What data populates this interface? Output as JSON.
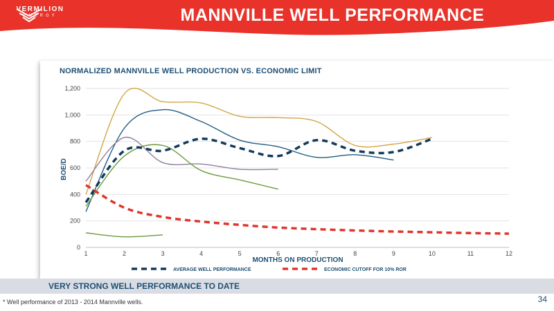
{
  "header": {
    "title": "MANNVILLE WELL PERFORMANCE",
    "logo_name": "VERMILION",
    "logo_sub": "ENERGY"
  },
  "colors": {
    "brand_red": "#e8322a",
    "navy": "#1e4f73",
    "gold": "#d4a442",
    "green": "#6b9a3b",
    "purple": "#8e7d9e"
  },
  "chart_data": {
    "type": "line",
    "title": "NORMALIZED MANNVILLE WELL PRODUCTION VS. ECONOMIC LIMIT",
    "xlabel": "MONTHS ON PRODUCTION",
    "ylabel": "BOE/D",
    "xlim": [
      1,
      12
    ],
    "ylim": [
      0,
      1200
    ],
    "x_ticks": [
      "1",
      "2",
      "3",
      "4",
      "5",
      "6",
      "7",
      "8",
      "9",
      "10",
      "11",
      "12"
    ],
    "y_ticks": [
      "0",
      "200",
      "400",
      "600",
      "800",
      "1,000",
      "1,200"
    ],
    "grid": true,
    "legend_position": "bottom",
    "series": [
      {
        "name": "",
        "color": "#d4a442",
        "style": "solid",
        "x": [
          1,
          2,
          3,
          4,
          5,
          6,
          7,
          8,
          9,
          10
        ],
        "y": [
          400,
          1160,
          1100,
          1090,
          990,
          980,
          950,
          770,
          780,
          830
        ]
      },
      {
        "name": "",
        "color": "#1e5a82",
        "style": "solid",
        "x": [
          1,
          2,
          3,
          4,
          5,
          6,
          7,
          8,
          9
        ],
        "y": [
          270,
          900,
          1040,
          950,
          810,
          760,
          680,
          700,
          660
        ]
      },
      {
        "name": "",
        "color": "#8e7d9e",
        "style": "solid",
        "x": [
          1,
          2,
          3,
          4,
          5,
          6
        ],
        "y": [
          500,
          830,
          640,
          630,
          590,
          590
        ]
      },
      {
        "name": "",
        "color": "#6b9a3b",
        "style": "solid",
        "x": [
          1,
          2,
          3,
          4,
          5,
          6
        ],
        "y": [
          310,
          690,
          770,
          580,
          510,
          440
        ]
      },
      {
        "name": "",
        "color": "#6b9a3b",
        "style": "solid",
        "x": [
          1,
          2,
          3
        ],
        "y": [
          110,
          80,
          95
        ]
      },
      {
        "name": "AVERAGE WELL PERFORMANCE",
        "color": "#123a5a",
        "style": "dashed",
        "x": [
          1,
          2,
          3,
          4,
          5,
          6,
          7,
          8,
          9,
          10
        ],
        "y": [
          340,
          730,
          730,
          820,
          750,
          690,
          810,
          730,
          720,
          820
        ]
      },
      {
        "name": "ECONOMIC CUTOFF FOR 10% ROR",
        "color": "#e0352b",
        "style": "dashed",
        "x": [
          1,
          2,
          3,
          4,
          5,
          6,
          7,
          8,
          9,
          10,
          11,
          12
        ],
        "y": [
          470,
          300,
          230,
          195,
          170,
          150,
          138,
          128,
          120,
          114,
          108,
          104
        ]
      }
    ]
  },
  "footer": {
    "takeaway": "VERY STRONG WELL PERFORMANCE TO DATE",
    "footnote": "* Well performance of 2013 - 2014 Mannville wells.",
    "page_number": "34"
  }
}
